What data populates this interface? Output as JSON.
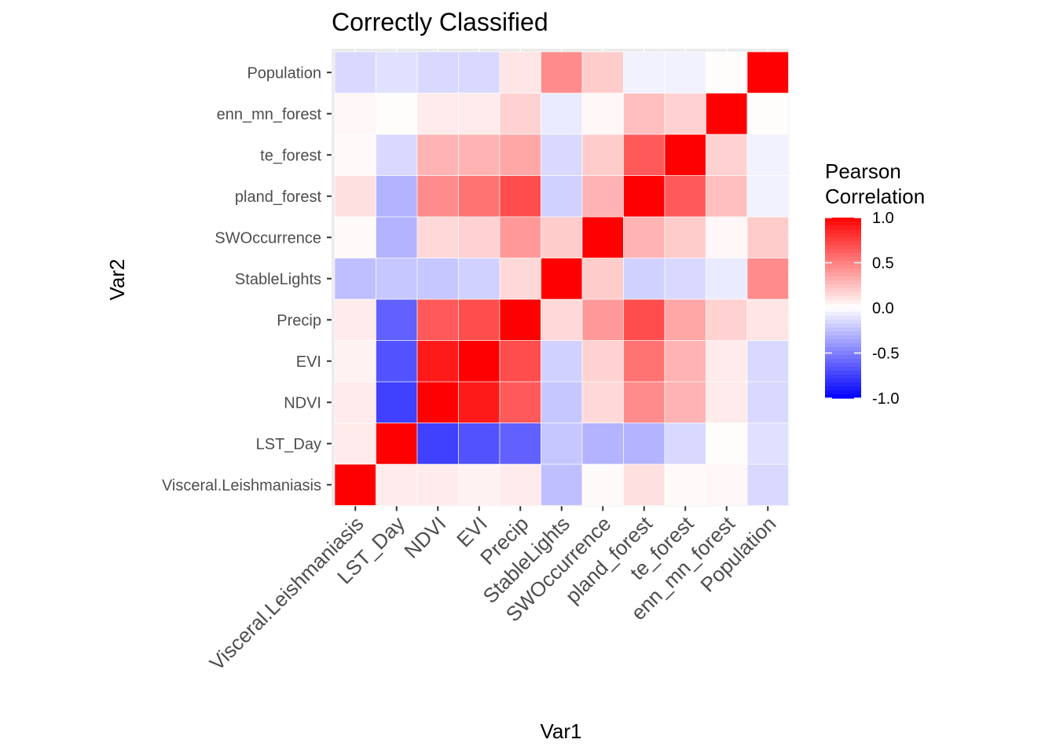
{
  "chart_data": {
    "type": "heatmap",
    "title": "Correctly Classified",
    "xlabel": "Var1",
    "ylabel": "Var2",
    "variables": [
      "Visceral.Leishmaniasis",
      "LST_Day",
      "NDVI",
      "EVI",
      "Precip",
      "StableLights",
      "SWOccurrence",
      "pland_forest",
      "te_forest",
      "enn_mn_forest",
      "Population"
    ],
    "matrix": [
      [
        1.0,
        0.08,
        0.08,
        0.05,
        0.08,
        -0.25,
        0.02,
        0.12,
        0.02,
        0.03,
        -0.15
      ],
      [
        0.08,
        1.0,
        -0.75,
        -0.68,
        -0.62,
        -0.22,
        -0.3,
        -0.3,
        -0.15,
        0.01,
        -0.12
      ],
      [
        0.08,
        -0.75,
        1.0,
        0.9,
        0.65,
        -0.22,
        0.15,
        0.45,
        0.3,
        0.08,
        -0.15
      ],
      [
        0.05,
        -0.68,
        0.9,
        1.0,
        0.7,
        -0.18,
        0.18,
        0.55,
        0.3,
        0.08,
        -0.15
      ],
      [
        0.08,
        -0.62,
        0.65,
        0.7,
        1.0,
        0.15,
        0.4,
        0.7,
        0.35,
        0.18,
        0.1
      ],
      [
        -0.25,
        -0.22,
        -0.22,
        -0.18,
        0.15,
        1.0,
        0.2,
        -0.18,
        -0.15,
        -0.08,
        0.45
      ],
      [
        0.02,
        -0.3,
        0.15,
        0.18,
        0.4,
        0.2,
        1.0,
        0.3,
        0.2,
        0.03,
        0.2
      ],
      [
        0.12,
        -0.3,
        0.45,
        0.55,
        0.7,
        -0.18,
        0.3,
        1.0,
        0.65,
        0.25,
        -0.05
      ],
      [
        0.02,
        -0.15,
        0.3,
        0.3,
        0.35,
        -0.15,
        0.2,
        0.65,
        1.0,
        0.18,
        -0.05
      ],
      [
        0.03,
        0.01,
        0.08,
        0.08,
        0.18,
        -0.08,
        0.03,
        0.25,
        0.18,
        1.0,
        0.01
      ],
      [
        -0.15,
        -0.12,
        -0.15,
        -0.15,
        0.1,
        0.45,
        0.2,
        -0.05,
        -0.05,
        0.01,
        1.0
      ]
    ],
    "legend": {
      "title_lines": [
        "Pearson",
        "Correlation"
      ],
      "ticks": [
        "1.0",
        "0.5",
        "0.0",
        "-0.5",
        "-1.0"
      ],
      "tick_values": [
        1.0,
        0.5,
        0.0,
        -0.5,
        -1.0
      ],
      "limits": [
        -1,
        1
      ],
      "colors": {
        "low": "#0000ff",
        "mid": "#ffffff",
        "high": "#ff0000"
      },
      "placement": "right"
    },
    "panel_background": "#ebebeb",
    "grid": true
  }
}
